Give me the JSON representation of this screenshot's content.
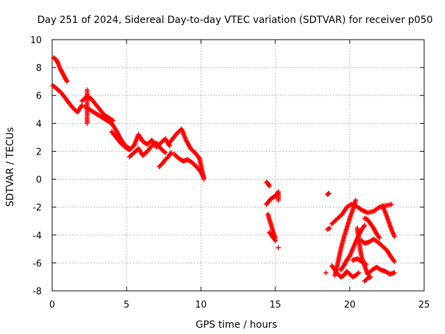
{
  "chart_data": {
    "type": "scatter",
    "title": "Day 251 of 2024, Sidereal Day-to-day VTEC variation (SDTVAR) for receiver p050",
    "xlabel": "GPS time / hours",
    "ylabel": "SDTVAR / TECUs",
    "xlim": [
      0,
      25
    ],
    "ylim": [
      -8,
      10
    ],
    "x_ticks": [
      0,
      5,
      10,
      15,
      20,
      25
    ],
    "y_ticks": [
      -8,
      -6,
      -4,
      -2,
      0,
      2,
      4,
      6,
      8,
      10
    ],
    "grid": true,
    "marker": "+",
    "marker_color": "#ff0000",
    "series": [
      {
        "name": "SDTVAR",
        "traces": [
          {
            "x": [
              0.1,
              0.25,
              0.4,
              0.55,
              0.7,
              0.85,
              1.0
            ],
            "y": [
              8.7,
              8.6,
              8.3,
              7.9,
              7.6,
              7.3,
              7.0
            ]
          },
          {
            "x": [
              0.05,
              0.3,
              0.6,
              0.9,
              1.1,
              1.4,
              1.7,
              2.0
            ],
            "y": [
              6.7,
              6.5,
              6.2,
              5.8,
              5.5,
              5.1,
              4.8,
              5.3
            ]
          },
          {
            "x": [
              2.0,
              2.3,
              2.6,
              2.9,
              3.2,
              3.5,
              3.8,
              4.1
            ],
            "y": [
              5.6,
              5.9,
              5.8,
              5.4,
              5.0,
              4.6,
              4.4,
              4.2
            ]
          },
          {
            "x": [
              2.2,
              2.5,
              2.8,
              3.1,
              3.4,
              3.7,
              4.0,
              4.3,
              4.6,
              4.9,
              5.2
            ],
            "y": [
              5.2,
              5.0,
              4.8,
              4.6,
              4.4,
              4.2,
              4.0,
              3.5,
              2.9,
              2.4,
              2.2
            ]
          },
          {
            "x": [
              2.35,
              2.35
            ],
            "y": [
              4.0,
              6.4
            ]
          },
          {
            "x": [
              4.0,
              4.3,
              4.6,
              4.9,
              5.2,
              5.5,
              5.8,
              6.1,
              6.4,
              6.7,
              7.0,
              7.3,
              7.6,
              7.9
            ],
            "y": [
              3.4,
              3.0,
              2.6,
              2.3,
              2.1,
              2.4,
              3.2,
              2.7,
              2.5,
              2.8,
              2.3,
              2.6,
              2.9,
              2.4
            ]
          },
          {
            "x": [
              5.2,
              5.5,
              5.8,
              6.1,
              6.4,
              6.7,
              7.0,
              7.3,
              7.6
            ],
            "y": [
              1.6,
              1.9,
              2.2,
              1.7,
              2.0,
              2.4,
              2.6,
              2.2,
              1.9
            ]
          },
          {
            "x": [
              7.2,
              7.4,
              7.6,
              7.8,
              8.0
            ],
            "y": [
              0.9,
              1.1,
              1.4,
              1.6,
              1.9
            ]
          },
          {
            "x": [
              7.8,
              8.1,
              8.4,
              8.7,
              9.0,
              9.3,
              9.6,
              9.9
            ],
            "y": [
              2.5,
              2.9,
              3.3,
              3.6,
              2.8,
              2.2,
              1.9,
              1.5
            ]
          },
          {
            "x": [
              8.2,
              8.5,
              8.8,
              9.1,
              9.4,
              9.7,
              10.0,
              10.2
            ],
            "y": [
              1.8,
              1.5,
              1.3,
              1.4,
              1.2,
              0.9,
              0.5,
              0.1
            ]
          },
          {
            "x": [
              9.9,
              10.0,
              10.1,
              10.2
            ],
            "y": [
              1.5,
              1.0,
              0.5,
              0.0
            ]
          },
          {
            "x": [
              14.4,
              14.5,
              14.6
            ],
            "y": [
              -0.2,
              -0.3,
              -0.5
            ]
          },
          {
            "x": [
              14.4,
              14.55,
              14.7,
              14.85,
              15.0,
              15.2
            ],
            "y": [
              -1.8,
              -1.6,
              -1.4,
              -1.3,
              -1.2,
              -0.9
            ]
          },
          {
            "x": [
              14.5,
              14.6,
              14.7,
              14.8,
              14.9,
              15.0
            ],
            "y": [
              -2.5,
              -2.9,
              -3.2,
              -3.6,
              -3.9,
              -4.2
            ]
          },
          {
            "x": [
              14.6,
              14.8,
              15.0
            ],
            "y": [
              -3.8,
              -4.1,
              -4.4
            ]
          },
          {
            "x": [
              15.2,
              15.2
            ],
            "y": [
              -1.5,
              -1.0
            ]
          },
          {
            "x": [
              15.2
            ],
            "y": [
              -4.9
            ]
          },
          {
            "x": [
              18.5,
              18.6
            ],
            "y": [
              -1.1,
              -1.0
            ]
          },
          {
            "x": [
              18.5,
              18.65
            ],
            "y": [
              -3.6,
              -3.5
            ]
          },
          {
            "x": [
              18.4
            ],
            "y": [
              -6.7
            ]
          },
          {
            "x": [
              18.8,
              19.0,
              19.2,
              19.4,
              19.6,
              19.8,
              20.0,
              20.2,
              20.4,
              20.6
            ],
            "y": [
              -6.2,
              -6.5,
              -6.8,
              -7.0,
              -6.9,
              -6.6,
              -6.8,
              -7.0,
              -6.9,
              -6.7
            ]
          },
          {
            "x": [
              18.8,
              19.0,
              19.2,
              19.5,
              19.8,
              20.1,
              20.4,
              20.8,
              21.2,
              21.6,
              22.0,
              22.4,
              22.8
            ],
            "y": [
              -3.2,
              -3.0,
              -2.8,
              -2.5,
              -2.0,
              -1.8,
              -1.9,
              -2.2,
              -2.4,
              -2.3,
              -2.0,
              -1.9,
              -1.8
            ]
          },
          {
            "x": [
              19.0,
              19.2,
              19.4,
              19.6,
              19.8,
              20.0,
              20.2,
              20.4
            ],
            "y": [
              -6.9,
              -6.0,
              -5.0,
              -4.2,
              -3.5,
              -2.8,
              -2.2,
              -1.5
            ]
          },
          {
            "x": [
              19.4,
              19.6,
              19.8,
              20.0,
              20.2,
              20.4,
              20.6,
              20.8,
              21.0
            ],
            "y": [
              -6.5,
              -6.2,
              -5.8,
              -5.5,
              -5.0,
              -4.5,
              -4.0,
              -3.6,
              -3.3
            ]
          },
          {
            "x": [
              20.5,
              20.6,
              20.7,
              20.8,
              21.0,
              21.2
            ],
            "y": [
              -3.5,
              -4.2,
              -5.0,
              -5.6,
              -6.2,
              -6.8
            ]
          },
          {
            "x": [
              20.8,
              21.0,
              21.3,
              21.6,
              21.9,
              22.2,
              22.5,
              22.8,
              23.0
            ],
            "y": [
              -4.4,
              -4.6,
              -4.5,
              -4.3,
              -4.5,
              -4.8,
              -5.1,
              -5.6,
              -5.9
            ]
          },
          {
            "x": [
              21.2,
              21.5,
              21.8,
              22.1,
              22.4,
              22.7,
              23.0
            ],
            "y": [
              -6.8,
              -6.5,
              -6.3,
              -6.5,
              -6.6,
              -6.8,
              -6.7
            ]
          },
          {
            "x": [
              21.0,
              21.2,
              21.4
            ],
            "y": [
              -7.3,
              -7.1,
              -7.0
            ]
          },
          {
            "x": [
              21.0,
              21.2,
              21.4,
              21.6,
              21.8,
              22.0
            ],
            "y": [
              -2.8,
              -2.9,
              -3.2,
              -3.5,
              -3.9,
              -4.2
            ]
          },
          {
            "x": [
              22.2,
              22.4,
              22.6,
              22.8,
              23.0
            ],
            "y": [
              -1.9,
              -2.4,
              -3.0,
              -3.6,
              -4.1
            ]
          },
          {
            "x": [
              20.2,
              20.5,
              20.8,
              21.1
            ],
            "y": [
              -5.8,
              -5.7,
              -5.9,
              -6.1
            ]
          }
        ]
      }
    ]
  }
}
